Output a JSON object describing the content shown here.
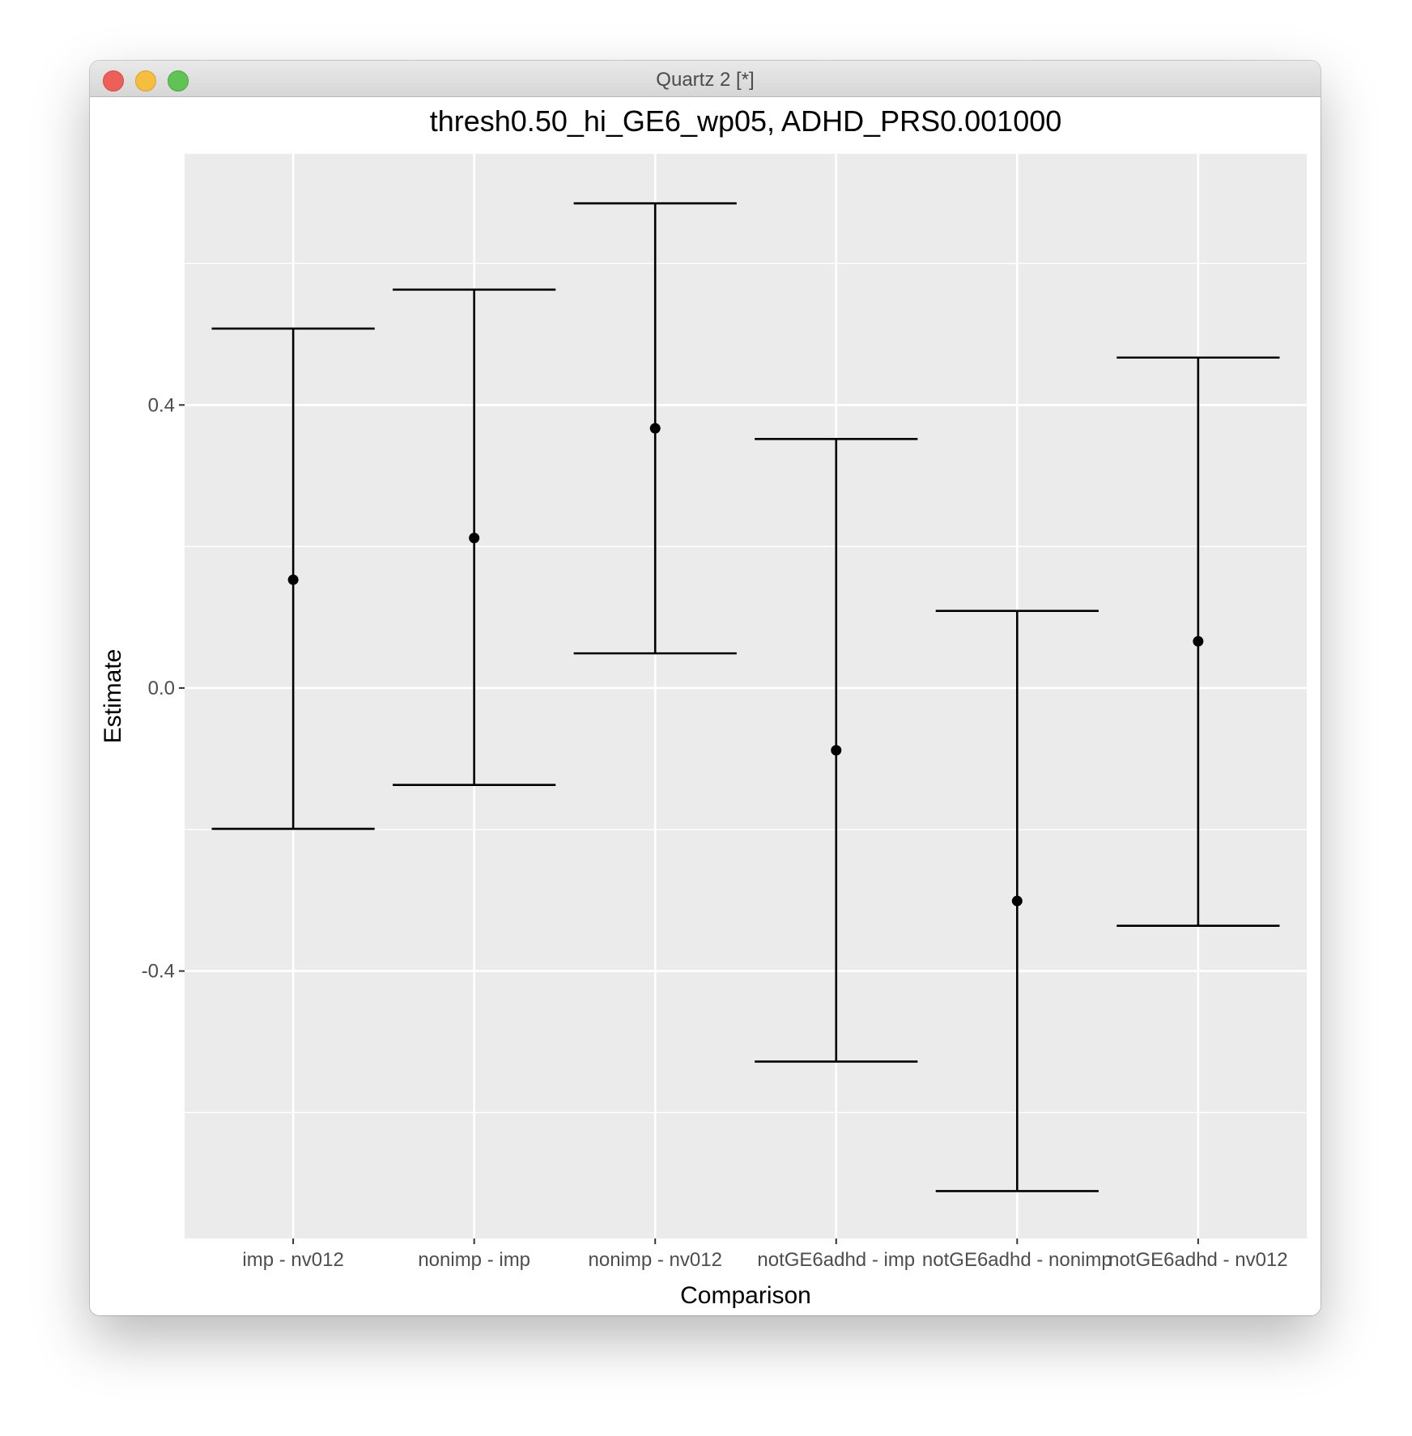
{
  "window": {
    "title": "Quartz 2 [*]",
    "colors": {
      "close": "#ee5f57",
      "minimize": "#f5be3f",
      "maximize": "#5fc454"
    }
  },
  "chart_data": {
    "type": "errorbar",
    "title": "thresh0.50_hi_GE6_wp05, ADHD_PRS0.001000",
    "xlabel": "Comparison",
    "ylabel": "Estimate",
    "ylim": [
      -0.778,
      0.755
    ],
    "yticks": [
      -0.4,
      0.0,
      0.4
    ],
    "ytick_labels": [
      "-0.4",
      "0.0",
      "0.4"
    ],
    "minor_yticks": [
      -0.6,
      -0.2,
      0.2,
      0.6
    ],
    "grid": true,
    "panel_background": "#ebebeb",
    "categories": [
      "imp - nv012",
      "nonimp - imp",
      "nonimp - nv012",
      "notGE6adhd - imp",
      "notGE6adhd - nonimp",
      "notGE6adhd - nv012"
    ],
    "estimates": [
      0.153,
      0.212,
      0.367,
      -0.088,
      -0.301,
      0.066
    ],
    "lower": [
      -0.199,
      -0.137,
      0.049,
      -0.528,
      -0.711,
      -0.336
    ],
    "upper": [
      0.508,
      0.563,
      0.685,
      0.352,
      0.109,
      0.467
    ]
  }
}
